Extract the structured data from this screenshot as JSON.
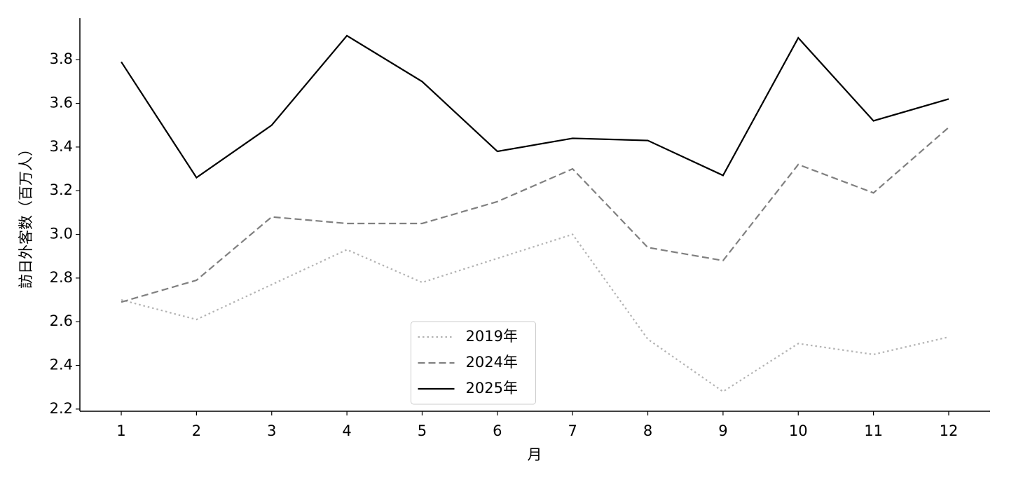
{
  "chart_data": {
    "type": "line",
    "xlabel": "月",
    "ylabel": "訪日外客数（百万人）",
    "x": [
      1,
      2,
      3,
      4,
      5,
      6,
      7,
      8,
      9,
      10,
      11,
      12
    ],
    "series": [
      {
        "name": "2019年",
        "color": "#b3b3b3",
        "linestyle": "dotted",
        "values": [
          2.7,
          2.61,
          2.77,
          2.93,
          2.78,
          2.89,
          3.0,
          2.52,
          2.28,
          2.5,
          2.45,
          2.53
        ]
      },
      {
        "name": "2024年",
        "color": "#808080",
        "linestyle": "dashed",
        "values": [
          2.69,
          2.79,
          3.08,
          3.05,
          3.05,
          3.15,
          3.3,
          2.94,
          2.88,
          3.32,
          3.19,
          3.49
        ]
      },
      {
        "name": "2025年",
        "color": "#000000",
        "linestyle": "solid",
        "values": [
          3.79,
          3.26,
          3.5,
          3.91,
          3.7,
          3.38,
          3.44,
          3.43,
          3.27,
          3.9,
          3.52,
          3.62
        ]
      }
    ],
    "xlim": [
      0.45,
      12.55
    ],
    "ylim": [
      2.19,
      3.99
    ],
    "xticks": [
      1,
      2,
      3,
      4,
      5,
      6,
      7,
      8,
      9,
      10,
      11,
      12
    ],
    "yticks": [
      {
        "value": 2.2,
        "label": "2.2"
      },
      {
        "value": 2.4,
        "label": "2.4"
      },
      {
        "value": 2.6,
        "label": "2.6"
      },
      {
        "value": 2.8,
        "label": "2.8"
      },
      {
        "value": 3.0,
        "label": "3.0"
      },
      {
        "value": 3.2,
        "label": "3.2"
      },
      {
        "value": 3.4,
        "label": "3.4"
      },
      {
        "value": 3.6,
        "label": "3.6"
      },
      {
        "value": 3.8,
        "label": "3.8"
      }
    ],
    "legend": "lower center",
    "grid": false
  }
}
